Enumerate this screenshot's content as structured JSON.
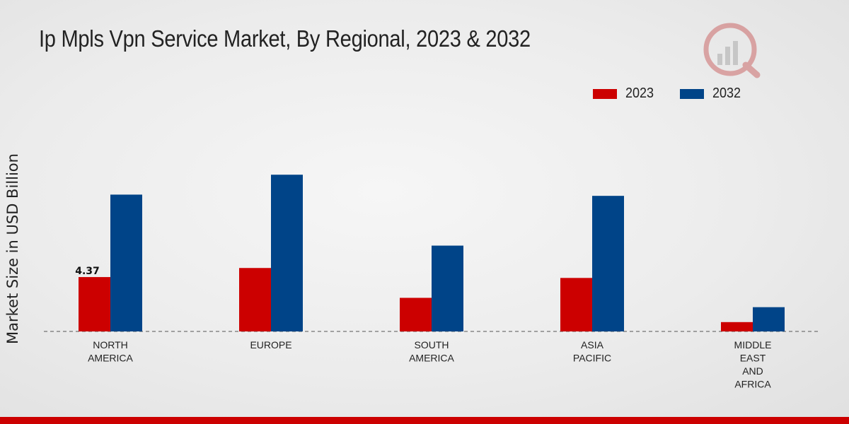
{
  "chart_data": {
    "type": "bar",
    "title": "Ip Mpls Vpn Service Market, By Regional, 2023 & 2032",
    "xlabel": "",
    "ylabel": "Market Size in USD Billion",
    "categories": [
      "NORTH\nAMERICA",
      "EUROPE",
      "SOUTH\nAMERICA",
      "ASIA\nPACIFIC",
      "MIDDLE\nEAST\nAND\nAFRICA"
    ],
    "series": [
      {
        "name": "2023",
        "color": "#cc0000",
        "values": [
          4.37,
          5.1,
          2.7,
          4.3,
          0.75
        ]
      },
      {
        "name": "2032",
        "color": "#004488",
        "values": [
          11.0,
          12.6,
          6.9,
          10.9,
          1.95
        ]
      }
    ],
    "data_labels": [
      {
        "series": "2023",
        "category_index": 0,
        "text": "4.37"
      }
    ],
    "ylim": [
      0,
      15
    ],
    "legend_position": "top-right",
    "grid": false
  }
}
